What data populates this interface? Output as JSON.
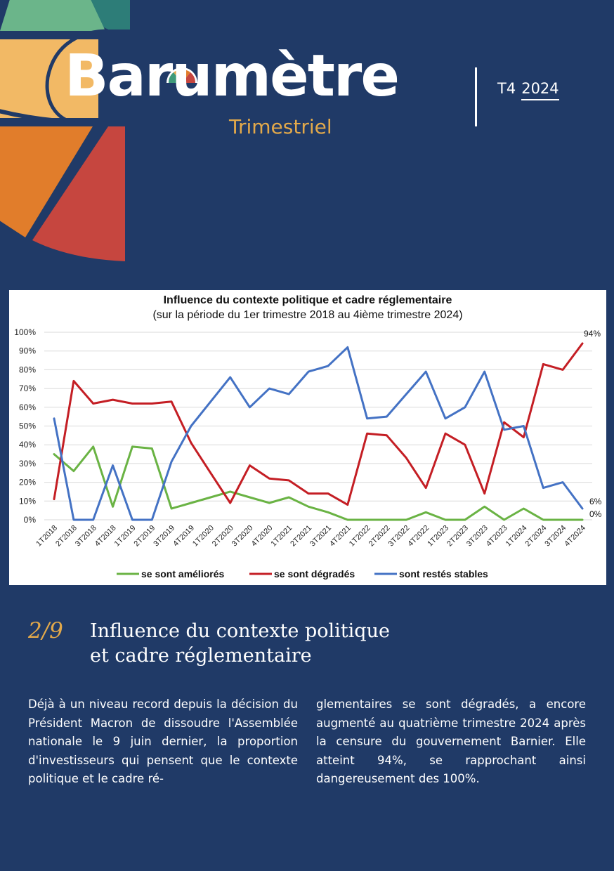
{
  "header": {
    "title": "Barumètre",
    "subtitle": "Trimestriel",
    "issue_quarter": "T4",
    "issue_year": "2024"
  },
  "colors": {
    "background": "#203a67",
    "accent_gold": "#e3a94a",
    "series_green": "#6ab344",
    "series_red": "#c41e24",
    "series_blue": "#4472c4"
  },
  "chart_data": {
    "type": "line",
    "title": "Influence du contexte politique et cadre réglementaire",
    "subtitle": "(sur la période du 1er trimestre 2018 au 4ième trimestre 2024)",
    "xlabel": "",
    "ylabel": "",
    "ylim": [
      0,
      100
    ],
    "yticks": [
      "0%",
      "10%",
      "20%",
      "30%",
      "40%",
      "50%",
      "60%",
      "70%",
      "80%",
      "90%",
      "100%"
    ],
    "grid": true,
    "legend_position": "bottom",
    "categories": [
      "1T2018",
      "2T2018",
      "3T2018",
      "4T2018",
      "1T2019",
      "2T2019",
      "3T2019",
      "4T2019",
      "1T2020",
      "2T2020",
      "3T2020",
      "4T2020",
      "1T2021",
      "2T2021",
      "3T2021",
      "4T2021",
      "1T2022",
      "2T2022",
      "3T2022",
      "4T2022",
      "1T2023",
      "2T2023",
      "3T2023",
      "4T2023",
      "1T2024",
      "2T2024",
      "3T2024",
      "4T2024"
    ],
    "series": [
      {
        "name": "se sont améliorés",
        "color": "#6ab344",
        "values": [
          35,
          26,
          39,
          7,
          39,
          38,
          6,
          9,
          12,
          15,
          12,
          9,
          12,
          7,
          4,
          0,
          0,
          0,
          0,
          4,
          0,
          0,
          7,
          0,
          6,
          0,
          0,
          0
        ]
      },
      {
        "name": "se sont dégradés",
        "color": "#c41e24",
        "values": [
          11,
          74,
          62,
          64,
          62,
          62,
          63,
          41,
          25,
          9,
          29,
          22,
          21,
          14,
          14,
          8,
          46,
          45,
          33,
          17,
          46,
          40,
          14,
          52,
          44,
          83,
          80,
          94
        ]
      },
      {
        "name": "sont restés stables",
        "color": "#4472c4",
        "values": [
          54,
          0,
          0,
          29,
          0,
          0,
          31,
          50,
          63,
          76,
          60,
          70,
          67,
          79,
          82,
          92,
          54,
          55,
          67,
          79,
          54,
          60,
          79,
          48,
          50,
          17,
          20,
          6
        ]
      }
    ],
    "annotations": [
      {
        "text": "94%",
        "series": "se sont dégradés",
        "category": "4T2024"
      },
      {
        "text": "6%",
        "series": "sont restés stables",
        "category": "4T2024"
      },
      {
        "text": "0%",
        "series": "se sont améliorés",
        "category": "4T2024"
      }
    ]
  },
  "section": {
    "number": "2/9",
    "title": "Influence du contexte politique et cadre réglementaire"
  },
  "body": {
    "col1": "Déjà à un niveau record depuis la décision du Président Macron de dissoudre l'Assemblée nationale le 9 juin dernier, la proportion d'investisseurs qui pensent que le contexte politique et le cadre ré-",
    "col2": "glementaires se sont dégradés, a encore augmenté au quatrième trimestre 2024 après la censure du gouvernement Barnier. Elle atteint 94%, se rapprochant ainsi dangereusement des 100%."
  }
}
